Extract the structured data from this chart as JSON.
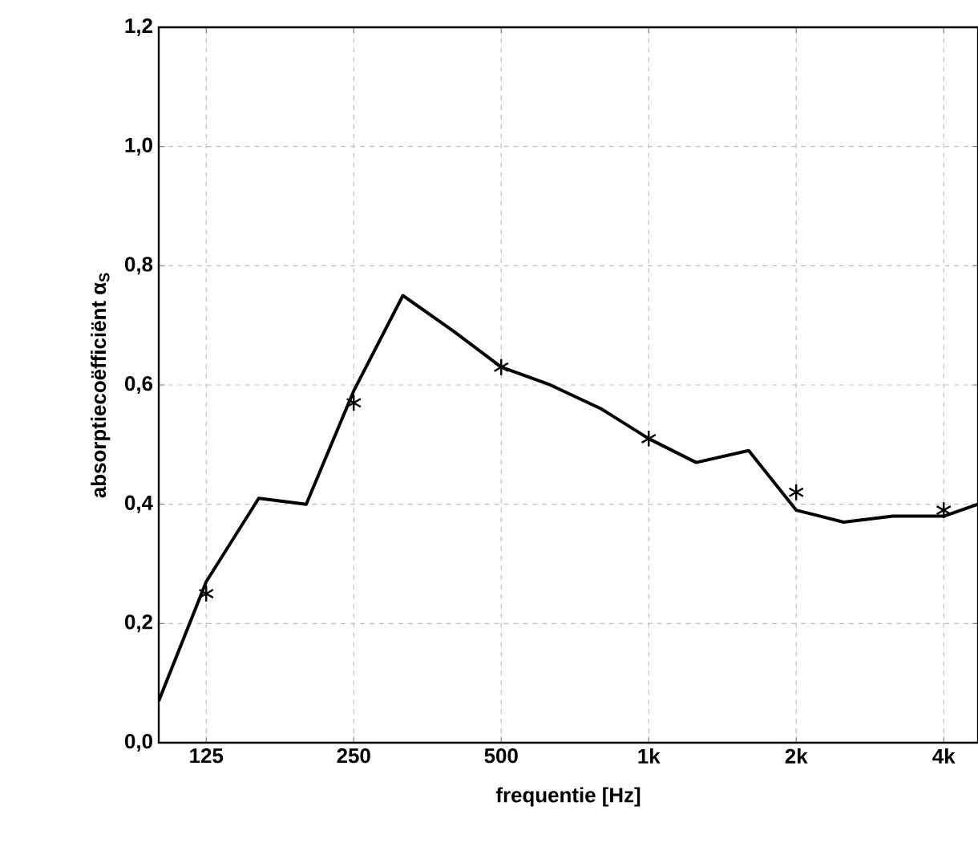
{
  "chart_data": {
    "type": "line",
    "xlabel": "frequentie [Hz]",
    "ylabel": "absorptiecoëfficiënt α$_{S}$",
    "log": "x",
    "grid": true,
    "xlim": [
      100,
      4700
    ],
    "ylim": [
      0,
      1.2
    ],
    "xticks": [
      125,
      250,
      500,
      {
        "value": 1000,
        "label": "1k"
      },
      {
        "value": 2000,
        "label": "2k"
      },
      {
        "value": 4000,
        "label": "4k"
      }
    ],
    "yticks": [
      {
        "value": 0,
        "label": "0,0"
      },
      {
        "value": 0.2,
        "label": "0,2"
      },
      {
        "value": 0.4,
        "label": "0,4"
      },
      {
        "value": 0.6,
        "label": "0,6"
      },
      {
        "value": 0.8,
        "label": "0,8"
      },
      {
        "value": 1.0,
        "label": "1,0"
      },
      {
        "value": 1.2,
        "label": "1,2"
      }
    ],
    "series": [
      {
        "color": "#000000",
        "marker": "none",
        "line_style": "solid",
        "x": [
          100,
          125,
          160,
          200,
          250,
          315,
          400,
          500,
          630,
          800,
          1000,
          1250,
          1600,
          2000,
          2500,
          3150,
          4000,
          4700
        ],
        "values": [
          0.07,
          0.27,
          0.41,
          0.4,
          0.59,
          0.75,
          0.69,
          0.63,
          0.6,
          0.56,
          0.51,
          0.47,
          0.49,
          0.39,
          0.37,
          0.38,
          0.38,
          0.4
        ]
      },
      {
        "type": "scatter",
        "color": "#000000",
        "marker": "cross",
        "x": [
          125,
          250,
          500,
          1000,
          2000,
          4000
        ],
        "values": [
          0.25,
          0.57,
          0.63,
          0.51,
          0.42,
          0.39
        ]
      }
    ]
  }
}
